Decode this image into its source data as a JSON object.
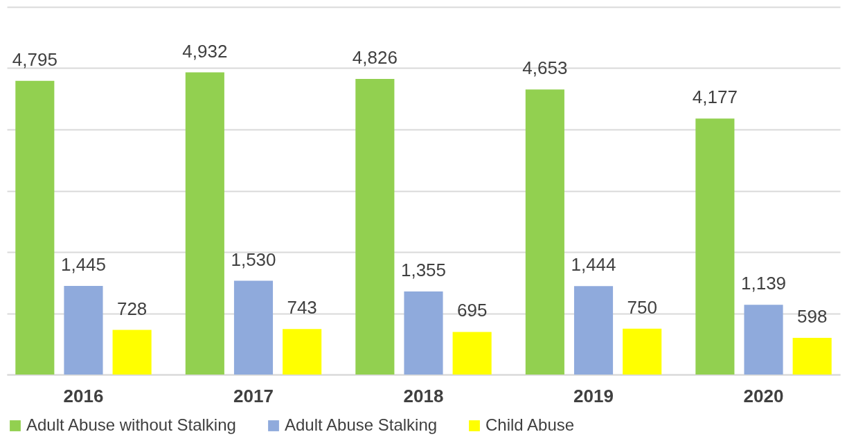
{
  "chart_data": {
    "type": "bar",
    "categories": [
      "2016",
      "2017",
      "2018",
      "2019",
      "2020"
    ],
    "series": [
      {
        "name": "Adult Abuse without Stalking",
        "color": "#92d050",
        "values": [
          4795,
          4932,
          4826,
          4653,
          4177
        ],
        "value_labels": [
          "4,795",
          "4,932",
          "4,826",
          "4,653",
          "4,177"
        ]
      },
      {
        "name": "Adult Abuse Stalking",
        "color": "#8faadc",
        "values": [
          1445,
          1530,
          1355,
          1444,
          1139
        ],
        "value_labels": [
          "1,445",
          "1,530",
          "1,355",
          "1,444",
          "1,139"
        ]
      },
      {
        "name": "Child Abuse",
        "color": "#ffff00",
        "values": [
          728,
          743,
          695,
          750,
          598
        ],
        "value_labels": [
          "728",
          "743",
          "695",
          "750",
          "598"
        ]
      }
    ],
    "ylim": [
      0,
      6000
    ],
    "yticks": [
      {
        "value": 0,
        "label": null
      },
      {
        "value": 1000,
        "label": null
      },
      {
        "value": 2000,
        "label": null
      },
      {
        "value": 3000,
        "label": null
      },
      {
        "value": 4000,
        "label": null
      },
      {
        "value": 5000,
        "label": null
      },
      {
        "value": 6000,
        "label": null
      }
    ],
    "tick_labels": "x",
    "grid": "y",
    "legend": "bottom"
  }
}
